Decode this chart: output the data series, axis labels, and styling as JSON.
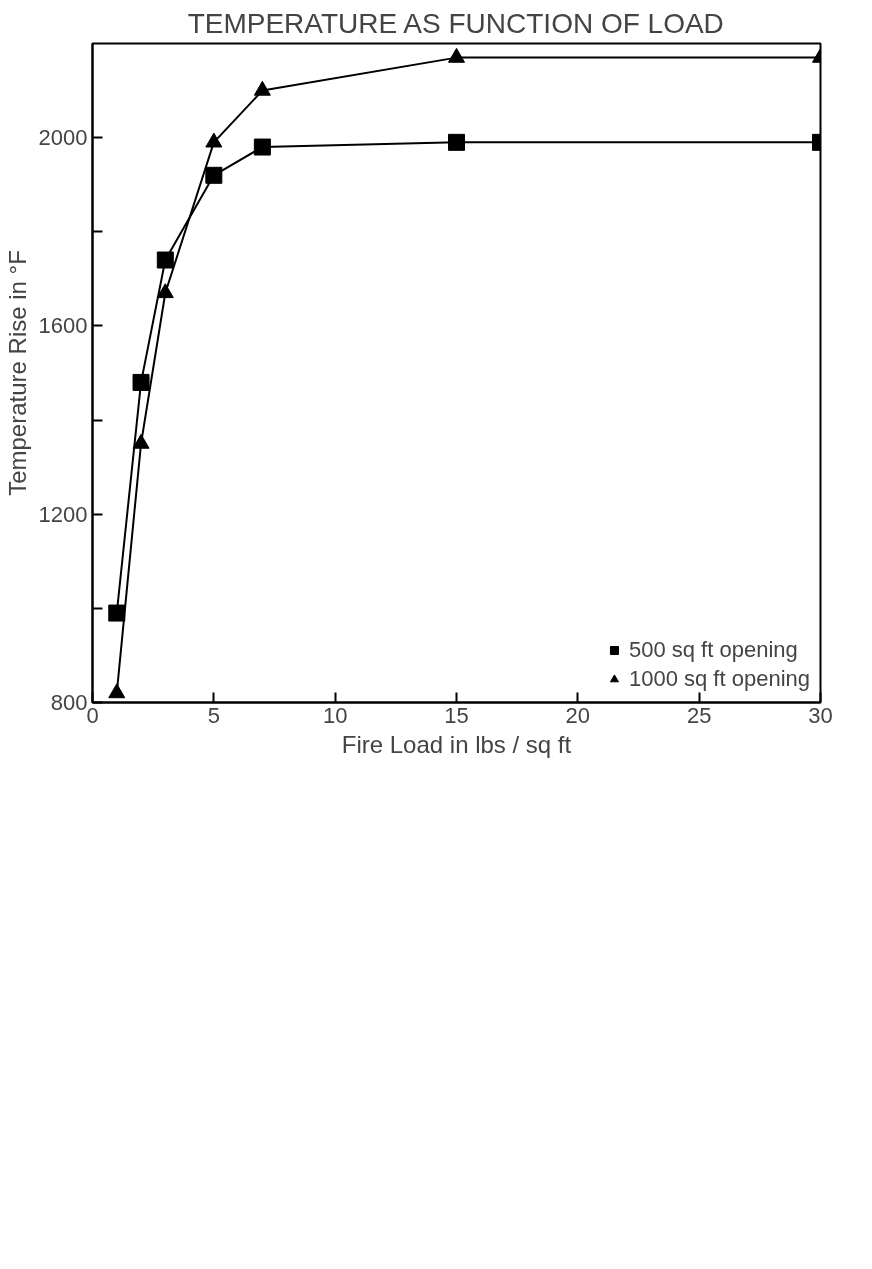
{
  "chart_data": {
    "type": "line",
    "title": "TEMPERATURE AS FUNCTION OF LOAD",
    "xlabel": "Fire Load in lbs / sq ft",
    "ylabel": "Temperature Rise in °F",
    "xlim": [
      0,
      30
    ],
    "xticks": [
      0,
      5,
      10,
      15,
      20,
      25,
      30
    ],
    "ylim": [
      800,
      2200
    ],
    "yticks": [
      800,
      {
        "value": 1000,
        "label": null
      },
      1200,
      {
        "value": 1400,
        "label": null
      },
      1600,
      {
        "value": 1800,
        "label": null
      },
      2000
    ],
    "grid": false,
    "legend": "bottom right",
    "line_style": "solid",
    "series": [
      {
        "name": "500 sq ft opening",
        "color": "#000000",
        "marker": "square",
        "x": [
          1,
          2,
          3,
          5,
          7,
          15,
          30
        ],
        "values": [
          990,
          1480,
          1740,
          1920,
          1980,
          1990,
          1990
        ]
      },
      {
        "name": "1000 sq ft opening",
        "color": "#000000",
        "marker": "triangle",
        "x": [
          1,
          2,
          3,
          5,
          7,
          15,
          30
        ],
        "values": [
          820,
          1350,
          1670,
          1990,
          2100,
          2170,
          2170
        ]
      }
    ]
  }
}
